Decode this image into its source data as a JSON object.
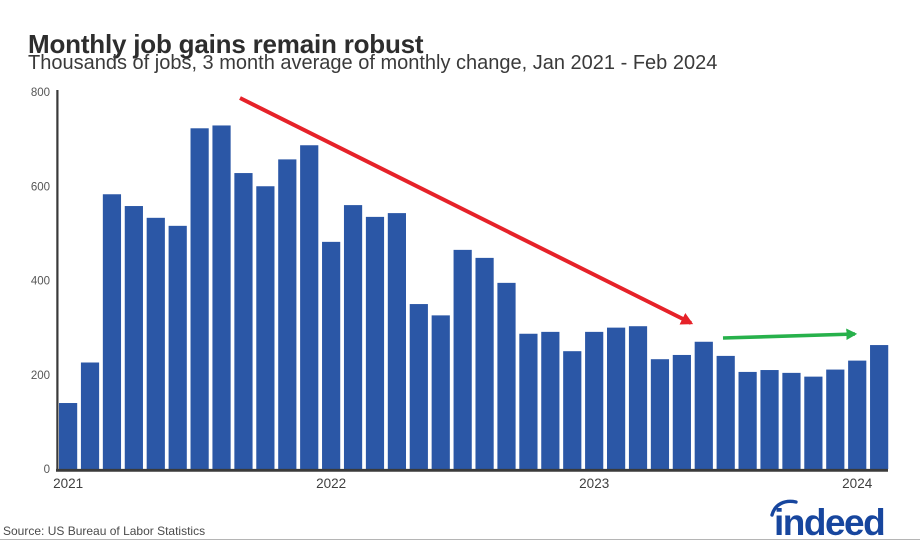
{
  "chart_data": {
    "type": "bar",
    "title": "Monthly job gains remain robust",
    "subtitle": "Thousands of jobs, 3 month average of monthly change, Jan 2021 - Feb 2024",
    "xlabel": "",
    "ylabel": "Thousands of jobs",
    "x": [
      "Jan 2021",
      "Feb 2021",
      "Mar 2021",
      "Apr 2021",
      "May 2021",
      "Jun 2021",
      "Jul 2021",
      "Aug 2021",
      "Sep 2021",
      "Oct 2021",
      "Nov 2021",
      "Dec 2021",
      "Jan 2022",
      "Feb 2022",
      "Mar 2022",
      "Apr 2022",
      "May 2022",
      "Jun 2022",
      "Jul 2022",
      "Aug 2022",
      "Sep 2022",
      "Oct 2022",
      "Nov 2022",
      "Dec 2022",
      "Jan 2023",
      "Feb 2023",
      "Mar 2023",
      "Apr 2023",
      "May 2023",
      "Jun 2023",
      "Jul 2023",
      "Aug 2023",
      "Sep 2023",
      "Oct 2023",
      "Nov 2023",
      "Dec 2023",
      "Jan 2024",
      "Feb 2024"
    ],
    "values": [
      140,
      226,
      583,
      558,
      533,
      516,
      723,
      729,
      628,
      600,
      657,
      687,
      482,
      560,
      535,
      543,
      350,
      326,
      465,
      448,
      395,
      287,
      291,
      250,
      291,
      300,
      303,
      233,
      242,
      270,
      240,
      206,
      210,
      204,
      196,
      211,
      230,
      263
    ],
    "ylim": [
      0,
      800
    ],
    "yticks": [
      0,
      200,
      400,
      600,
      800
    ],
    "xticks": [
      "2021",
      "2022",
      "2023",
      "2024"
    ],
    "grid": false,
    "legend": false,
    "background": "#ffffff",
    "bar_color": "#2b57a6",
    "axis_color": "#3a3a3a",
    "tick_label_color": "#565656",
    "annotations": [
      {
        "type": "arrow",
        "name": "declining-trend-arrow",
        "color": "#e62229",
        "from": [
          240,
          98
        ],
        "to": [
          691,
          323
        ],
        "width": 4
      },
      {
        "type": "arrow",
        "name": "flat-trend-arrow",
        "color": "#27b14b",
        "from": [
          723,
          338
        ],
        "to": [
          855,
          334
        ],
        "width": 3.6
      }
    ]
  },
  "footer": {
    "source": "Source: US Bureau of Labor Statistics",
    "logo_text": "indeed",
    "logo_color": "#17469e"
  }
}
